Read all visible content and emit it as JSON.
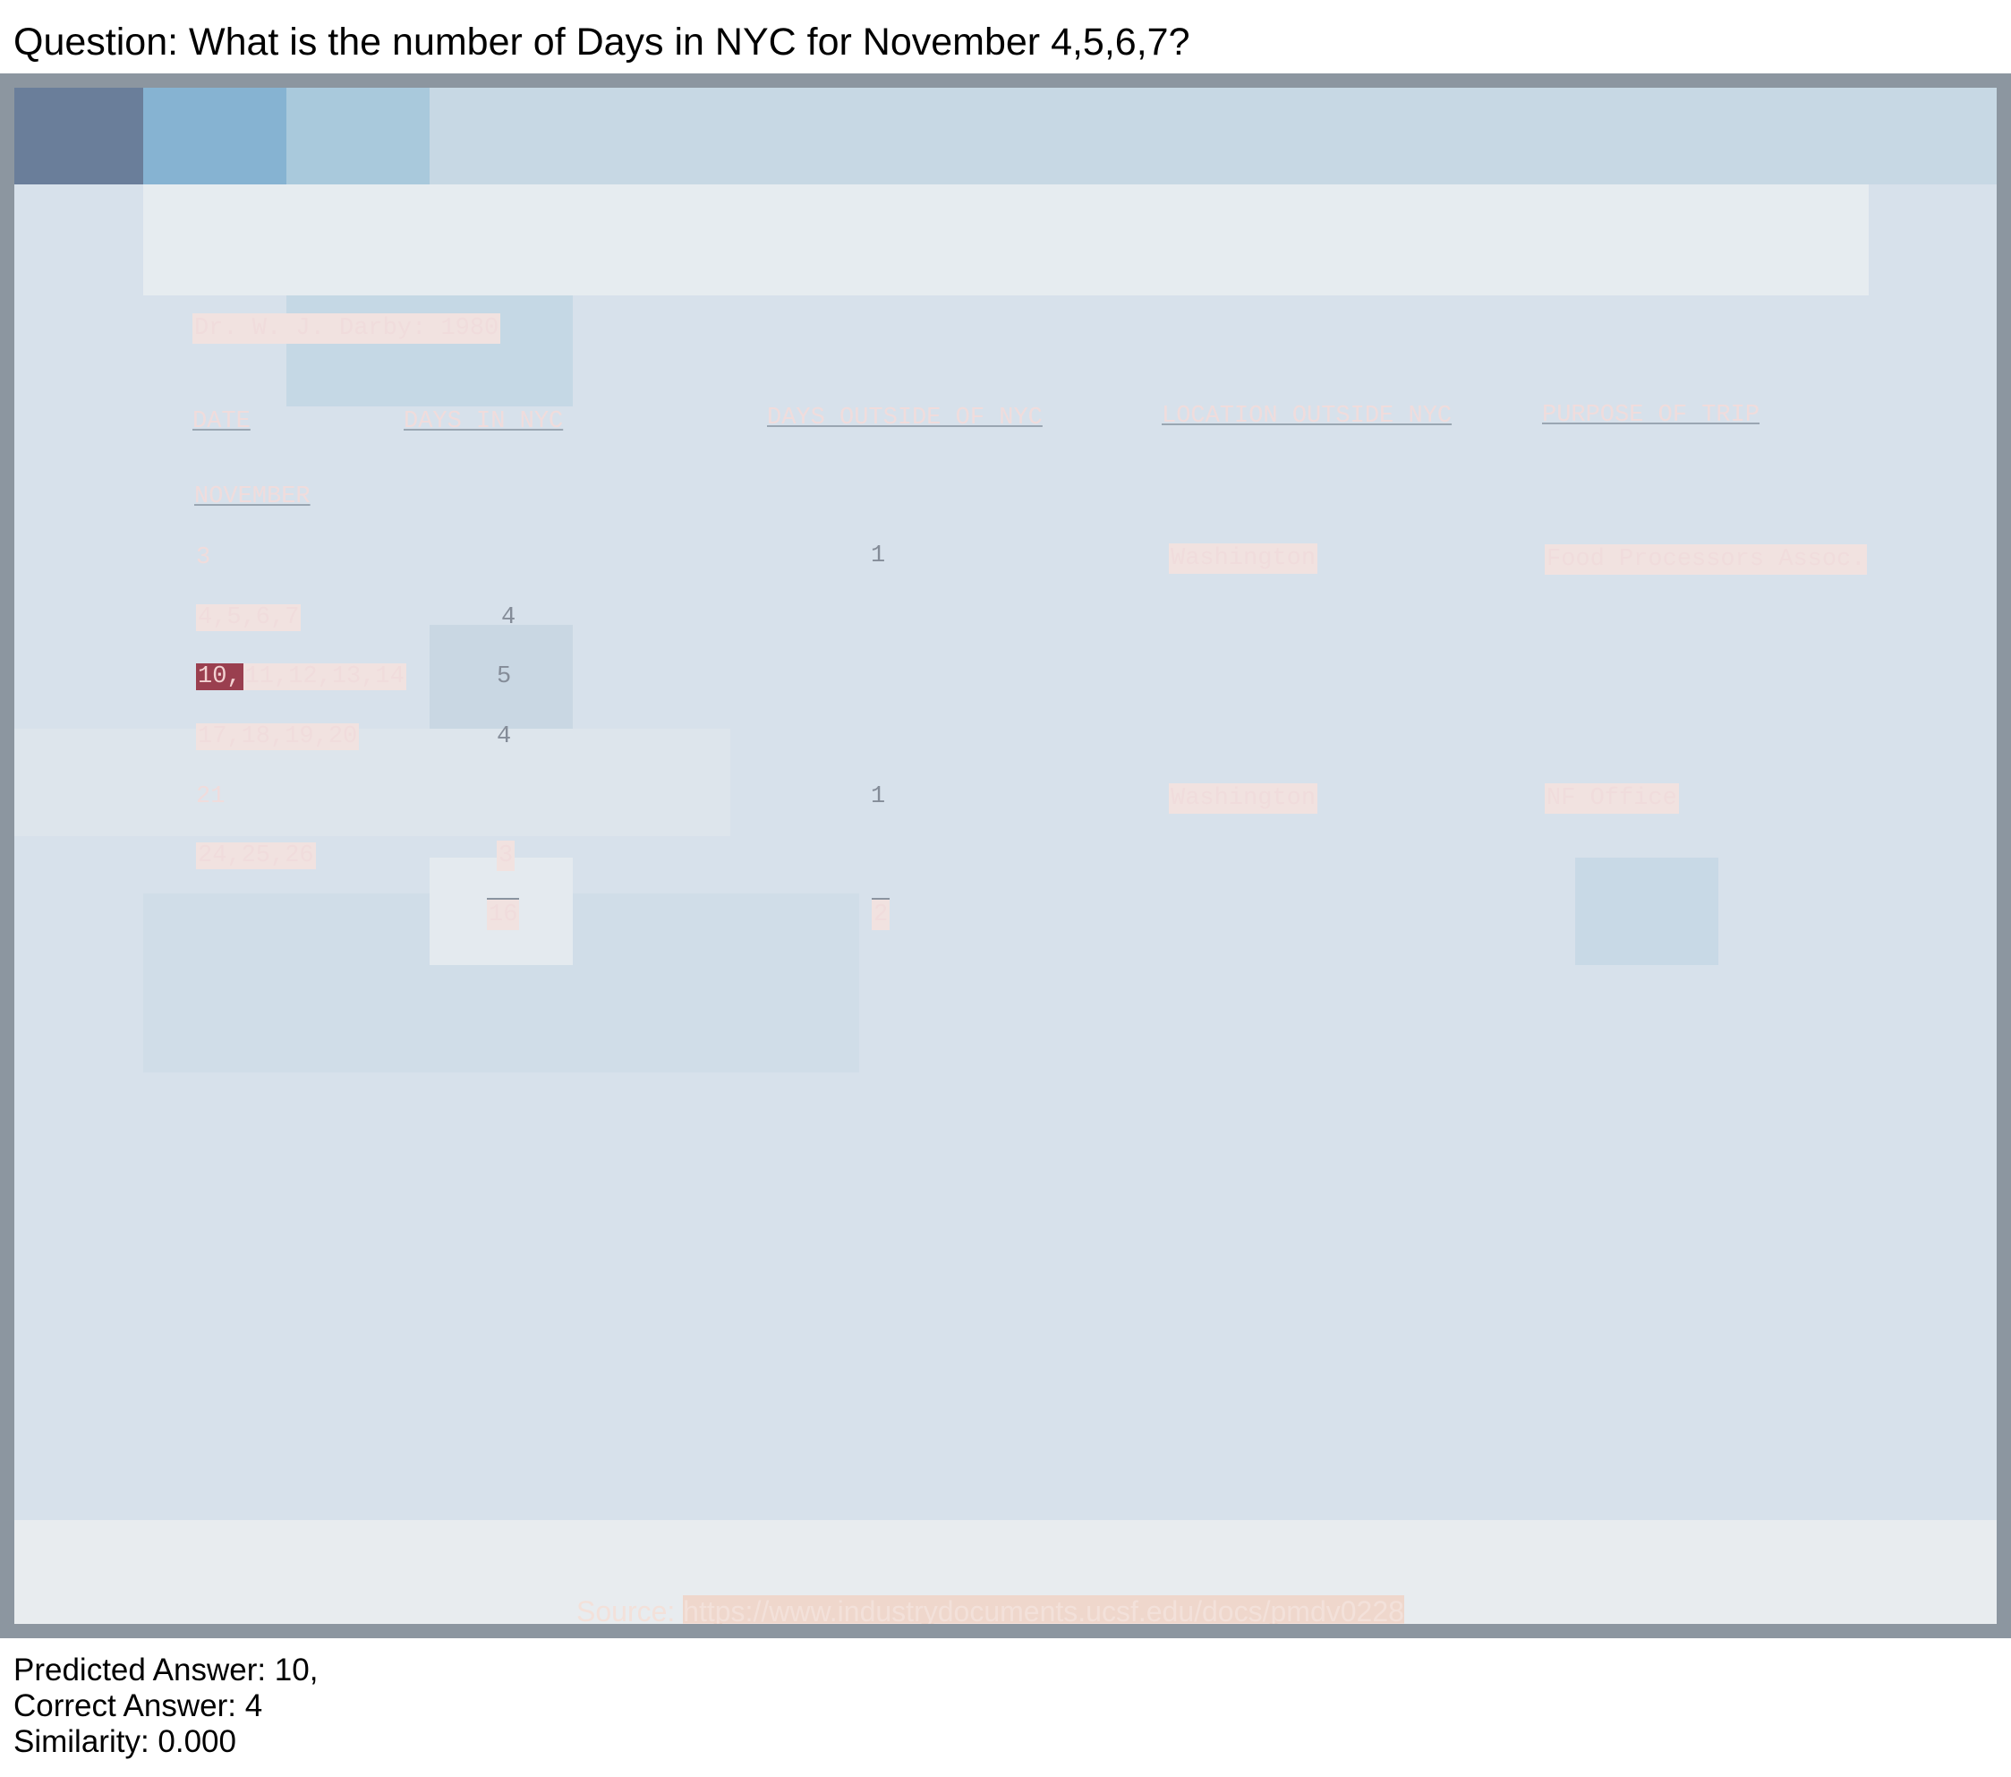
{
  "question": "Question: What is the number of Days in NYC for November 4,5,6,7?",
  "document": {
    "heading": "Dr. W. J. Darby: 1980",
    "columns": {
      "date": "DATE",
      "days_in_nyc": "DAYS IN NYC",
      "days_outside": "DAYS OUTSIDE OF NYC",
      "location": "LOCATION OUTSIDE NYC",
      "purpose": "PURPOSE OF TRIP"
    },
    "month": "NOVEMBER",
    "rows": [
      {
        "date_first": "",
        "date_rest": "3",
        "days_in": "",
        "days_out": "1",
        "location": "Washington",
        "purpose": "Food Processors Assoc."
      },
      {
        "date_first": "",
        "date_rest": "4,5,6,7",
        "days_in": "4",
        "days_out": "",
        "location": "",
        "purpose": ""
      },
      {
        "date_first": "10,",
        "date_rest": "11,12,13,14",
        "days_in": "5",
        "days_out": "",
        "location": "",
        "purpose": ""
      },
      {
        "date_first": "",
        "date_rest": "17,18,19,20",
        "days_in": "4",
        "days_out": "",
        "location": "",
        "purpose": ""
      },
      {
        "date_first": "",
        "date_rest": "21",
        "days_in": "",
        "days_out": "1",
        "location": "Washington",
        "purpose": "NF Office"
      },
      {
        "date_first": "",
        "date_rest": "24,25,26",
        "days_in": "3",
        "days_out": "",
        "location": "",
        "purpose": ""
      }
    ],
    "totals": {
      "days_in": "16",
      "days_out": "2"
    },
    "source_label": "Source:",
    "source_url": "https://www.industrydocuments.ucsf.edu/docs/pmdv0228"
  },
  "result": {
    "predicted": "Predicted Answer: 10,",
    "correct": "Correct Answer: 4",
    "similarity": "Similarity: 0.000"
  }
}
